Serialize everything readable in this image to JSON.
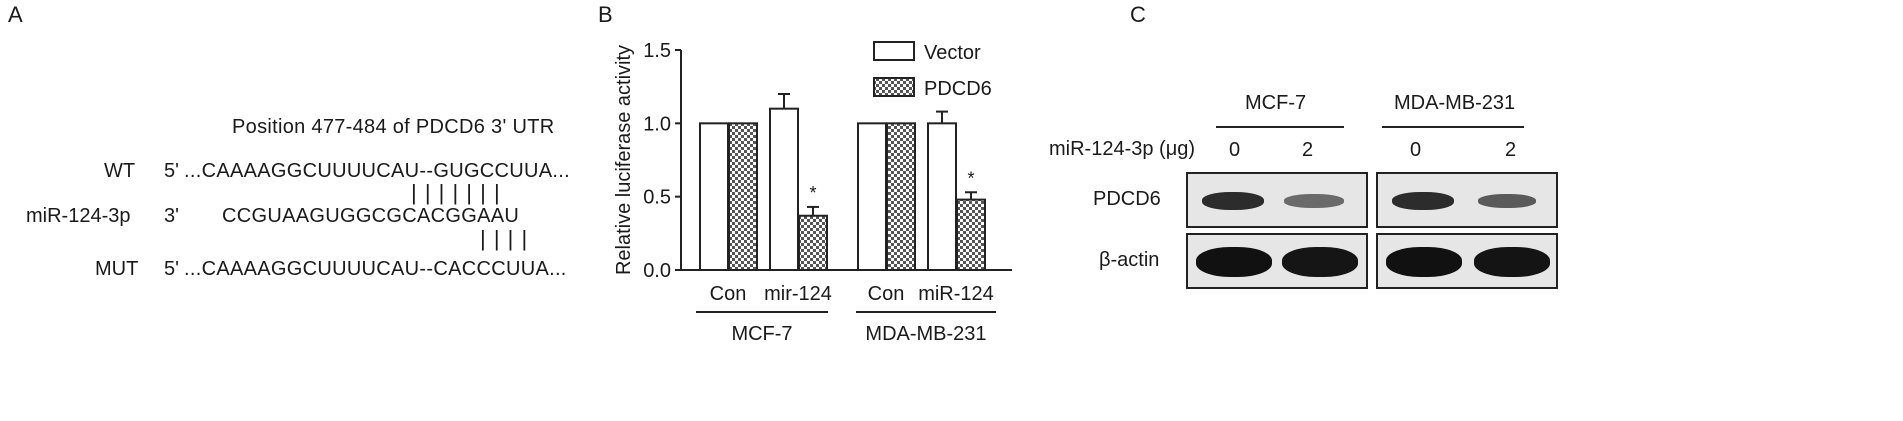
{
  "panel_a": {
    "letter": "A",
    "header": "Position 477-484 of PDCD6 3' UTR",
    "rows": [
      {
        "label": "WT",
        "end": "5'",
        "seq": "...CAAAAGGCUUUUCAU--GUGCCUUA..."
      },
      {
        "label": "miR-124-3p",
        "end": "3'",
        "seq": "CCGUAAGUGGCGCACGGAAU"
      },
      {
        "label": "MUT",
        "end": "5'",
        "seq": "...CAAAAGGCUUUUCAU--CACCCUUA..."
      }
    ],
    "bars_top": "| | | | | | |",
    "bars_bottom": "| | | |"
  },
  "panel_b": {
    "letter": "B",
    "chart_data": {
      "type": "bar",
      "ylabel": "Relative luciferase activity",
      "ylim": [
        0.0,
        1.5
      ],
      "yticks": [
        "0.0",
        "0.5",
        "1.0",
        "1.5"
      ],
      "categories": [
        "Con",
        "mir-124",
        "Con",
        "miR-124"
      ],
      "groups": [
        "MCF-7",
        "MDA-MB-231"
      ],
      "series": [
        {
          "name": "Vector",
          "values": [
            1.0,
            1.1,
            1.0,
            1.0
          ],
          "errors": [
            0,
            0.1,
            0,
            0.08
          ]
        },
        {
          "name": "PDCD6",
          "values": [
            1.0,
            0.37,
            1.0,
            0.48
          ],
          "errors": [
            0,
            0.06,
            0,
            0.05
          ]
        }
      ],
      "annotations": [
        "*",
        "*"
      ],
      "legend_position": "top-right"
    }
  },
  "panel_c": {
    "letter": "C",
    "cell_lines": [
      "MCF-7",
      "MDA-MB-231"
    ],
    "dose_label": "miR-124-3p (μg)",
    "doses": [
      "0",
      "2",
      "0",
      "2"
    ],
    "rows": [
      "PDCD6",
      "β-actin"
    ]
  }
}
